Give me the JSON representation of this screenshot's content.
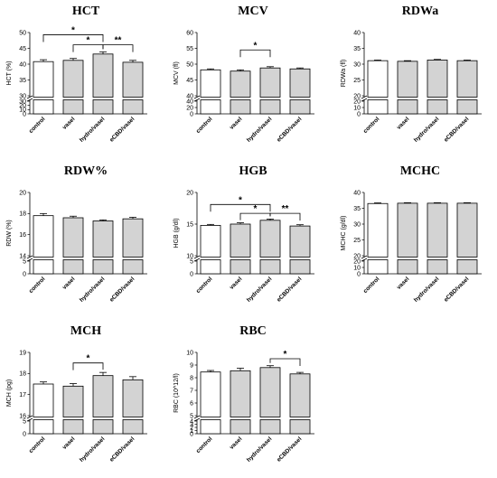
{
  "chart_data": [
    {
      "type": "bar",
      "title": "HCT",
      "ylabel": "HCT (%)",
      "categories": [
        "control",
        "vasel",
        "hydro/vasel",
        "eCBD/vasel"
      ],
      "values": [
        40.8,
        41.2,
        43.2,
        40.6
      ],
      "errors": [
        0.6,
        0.6,
        0.7,
        0.6
      ],
      "fills": [
        "white",
        "gray",
        "gray",
        "gray"
      ],
      "upper_range": [
        30,
        50
      ],
      "upper_ticks": [
        "30",
        "35",
        "40",
        "45",
        "50"
      ],
      "lower_range": [
        0,
        30
      ],
      "lower_ticks": [
        "0",
        "10",
        "20",
        "30"
      ],
      "significance": [
        {
          "from": 0,
          "to": 2,
          "label": "*",
          "level": 49.3
        },
        {
          "from": 1,
          "to": 2,
          "label": "*",
          "level": 46.1
        },
        {
          "from": 2,
          "to": 3,
          "label": "**",
          "level": 46.1
        }
      ]
    },
    {
      "type": "bar",
      "title": "MCV",
      "ylabel": "MCV (fl)",
      "categories": [
        "control",
        "vasel",
        "hydro/vasel",
        "eCBD/vasel"
      ],
      "values": [
        48.2,
        47.8,
        48.8,
        48.5
      ],
      "errors": [
        0.3,
        0.4,
        0.4,
        0.3
      ],
      "fills": [
        "white",
        "gray",
        "gray",
        "gray"
      ],
      "upper_range": [
        40,
        60
      ],
      "upper_ticks": [
        "40",
        "45",
        "50",
        "55",
        "60"
      ],
      "lower_range": [
        0,
        40
      ],
      "lower_ticks": [
        "0",
        "20",
        "40"
      ],
      "significance": [
        {
          "from": 1,
          "to": 2,
          "label": "*",
          "level": 54.5
        }
      ]
    },
    {
      "type": "bar",
      "title": "RDWa",
      "ylabel": "RDWa (fl)",
      "categories": [
        "control",
        "vasel",
        "hydro/vasel",
        "eCBD/vasel"
      ],
      "values": [
        31.1,
        30.9,
        31.3,
        31.1
      ],
      "errors": [
        0.2,
        0.2,
        0.2,
        0.2
      ],
      "fills": [
        "white",
        "gray",
        "gray",
        "gray"
      ],
      "upper_range": [
        20,
        40
      ],
      "upper_ticks": [
        "20",
        "25",
        "30",
        "35",
        "40"
      ],
      "lower_range": [
        0,
        20
      ],
      "lower_ticks": [
        "0",
        "10",
        "20"
      ],
      "significance": []
    },
    {
      "type": "bar",
      "title": "RDW%",
      "ylabel": "RDW (%)",
      "categories": [
        "control",
        "vasel",
        "hydro/vasel",
        "eCBD/vasel"
      ],
      "values": [
        17.8,
        17.6,
        17.3,
        17.5
      ],
      "errors": [
        0.2,
        0.15,
        0.1,
        0.15
      ],
      "fills": [
        "white",
        "gray",
        "gray",
        "gray"
      ],
      "upper_range": [
        14,
        20
      ],
      "upper_ticks": [
        "14",
        "16",
        "18",
        "20"
      ],
      "lower_range": [
        0,
        14
      ],
      "lower_ticks": [
        "0",
        "5"
      ],
      "significance": []
    },
    {
      "type": "bar",
      "title": "HGB",
      "ylabel": "HGB (g/dl)",
      "categories": [
        "control",
        "vasel",
        "hydro/vasel",
        "eCBD/vasel"
      ],
      "values": [
        14.8,
        15.0,
        15.6,
        14.7
      ],
      "errors": [
        0.15,
        0.2,
        0.2,
        0.2
      ],
      "fills": [
        "white",
        "gray",
        "gray",
        "gray"
      ],
      "upper_range": [
        10,
        20
      ],
      "upper_ticks": [
        "10",
        "15",
        "20"
      ],
      "lower_range": [
        0,
        10
      ],
      "lower_ticks": [
        "0",
        "5"
      ],
      "significance": [
        {
          "from": 0,
          "to": 2,
          "label": "*",
          "level": 18.1
        },
        {
          "from": 1,
          "to": 2,
          "label": "*",
          "level": 16.7
        },
        {
          "from": 2,
          "to": 3,
          "label": "**",
          "level": 16.7
        }
      ]
    },
    {
      "type": "bar",
      "title": "MCHC",
      "ylabel": "MCHC (g/dl)",
      "categories": [
        "control",
        "vasel",
        "hydro/vasel",
        "eCBD/vasel"
      ],
      "values": [
        36.5,
        36.6,
        36.6,
        36.6
      ],
      "errors": [
        0.2,
        0.15,
        0.15,
        0.15
      ],
      "fills": [
        "white",
        "gray",
        "gray",
        "gray"
      ],
      "upper_range": [
        20,
        40
      ],
      "upper_ticks": [
        "20",
        "25",
        "30",
        "35",
        "40"
      ],
      "lower_range": [
        0,
        20
      ],
      "lower_ticks": [
        "0",
        "10",
        "20"
      ],
      "significance": []
    },
    {
      "type": "bar",
      "title": "MCH",
      "ylabel": "MCH (pg)",
      "categories": [
        "control",
        "vasel",
        "hydro/vasel",
        "eCBD/vasel"
      ],
      "values": [
        17.5,
        17.4,
        17.9,
        17.7
      ],
      "errors": [
        0.1,
        0.12,
        0.15,
        0.15
      ],
      "fills": [
        "white",
        "gray",
        "gray",
        "gray"
      ],
      "upper_range": [
        16,
        19
      ],
      "upper_ticks": [
        "16",
        "17",
        "18",
        "19"
      ],
      "lower_range": [
        0,
        16
      ],
      "lower_ticks": [
        "0",
        "5"
      ],
      "significance": [
        {
          "from": 1,
          "to": 2,
          "label": "*",
          "level": 18.5
        }
      ]
    },
    {
      "type": "bar",
      "title": "RBC",
      "ylabel": "RBC (10^12/l)",
      "categories": [
        "control",
        "vasel",
        "hydro/vasel",
        "eCBD/vasel"
      ],
      "values": [
        8.45,
        8.55,
        8.8,
        8.3
      ],
      "errors": [
        0.12,
        0.2,
        0.15,
        0.12
      ],
      "fills": [
        "white",
        "gray",
        "gray",
        "gray"
      ],
      "upper_range": [
        5,
        10
      ],
      "upper_ticks": [
        "5",
        "6",
        "7",
        "8",
        "9",
        "10"
      ],
      "lower_range": [
        0,
        5
      ],
      "lower_ticks": [
        "0",
        "1",
        "2",
        "3",
        "4"
      ],
      "significance": [
        {
          "from": 2,
          "to": 3,
          "label": "*",
          "level": 9.5
        }
      ]
    }
  ],
  "colors": {
    "bar_fill": "#d3d3d3",
    "control_fill": "#ffffff",
    "stroke": "#000000"
  }
}
